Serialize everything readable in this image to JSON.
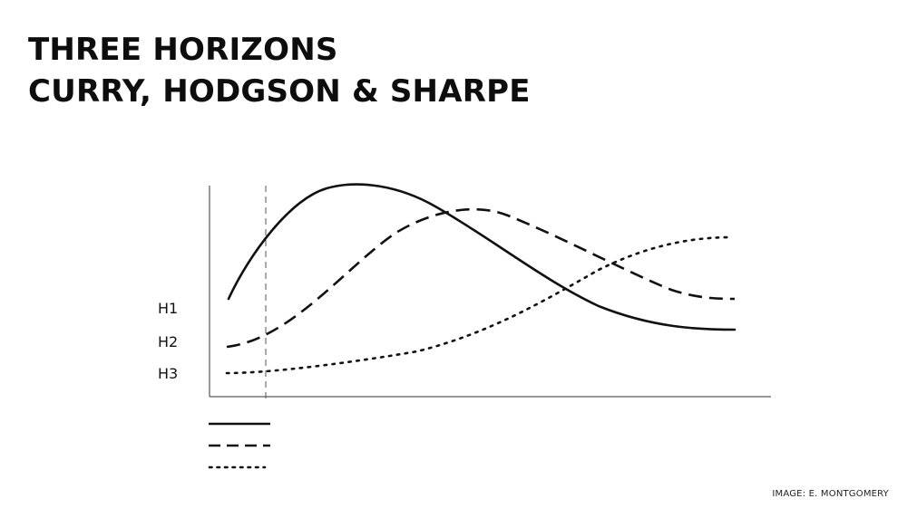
{
  "title": {
    "line1": "THREE HORIZONS",
    "line2": "CURRY, HODGSON & SHARPE"
  },
  "diagram": {
    "horizon_labels": [
      "H1",
      "H2",
      "H3"
    ],
    "curves": [
      {
        "horizon": "H1",
        "style": "solid"
      },
      {
        "horizon": "H2",
        "style": "dashed"
      },
      {
        "horizon": "H3",
        "style": "dotted"
      }
    ],
    "legend_styles": [
      "solid",
      "dashed",
      "dotted"
    ],
    "line_color": "#111111"
  },
  "credit": "IMAGE: E. MONTGOMERY"
}
